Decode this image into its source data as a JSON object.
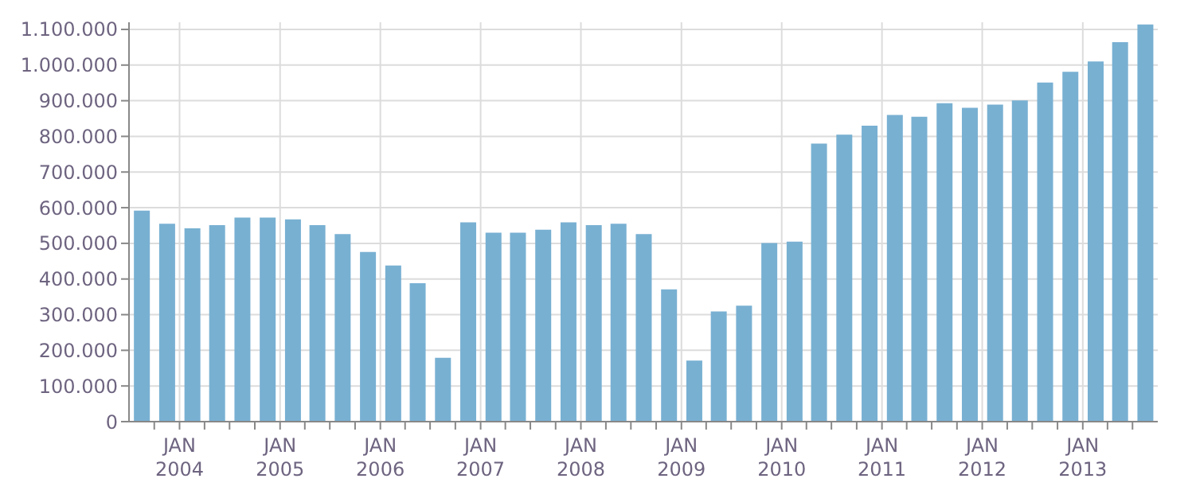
{
  "chart_data": {
    "type": "bar",
    "x": [
      "2003-08-15",
      "2003-11-15",
      "2004-02-15",
      "2004-05-15",
      "2004-08-15",
      "2004-11-15",
      "2005-02-15",
      "2005-05-15",
      "2005-08-15",
      "2005-11-15",
      "2006-02-15",
      "2006-05-15",
      "2006-08-15",
      "2006-11-15",
      "2007-02-15",
      "2007-05-15",
      "2007-08-15",
      "2007-11-15",
      "2008-02-15",
      "2008-05-15",
      "2008-08-15",
      "2008-11-15",
      "2009-02-15",
      "2009-05-15",
      "2009-08-15",
      "2009-11-15",
      "2010-02-15",
      "2010-05-15",
      "2010-08-15",
      "2010-11-15",
      "2011-02-15",
      "2011-05-15",
      "2011-08-15",
      "2011-11-15",
      "2012-02-15",
      "2012-05-15",
      "2012-08-15",
      "2012-11-15",
      "2013-02-15",
      "2013-05-15",
      "2013-08-15"
    ],
    "values": [
      592000,
      555000,
      542000,
      551000,
      572000,
      572000,
      567000,
      551000,
      526000,
      476000,
      438000,
      388000,
      179000,
      559000,
      530000,
      530000,
      538000,
      559000,
      551000,
      555000,
      526000,
      371000,
      171000,
      309000,
      325000,
      501000,
      505000,
      780000,
      805000,
      830000,
      860000,
      855000,
      893000,
      880000,
      889000,
      901000,
      951000,
      981000,
      1010000,
      1064000,
      1114000
    ],
    "color": "#78b0d2",
    "xlim": [
      "2003-07-01",
      "2013-10-01"
    ],
    "xticks": [
      {
        "value": "2003-10-01",
        "label": null
      },
      {
        "value": "2004-01-01",
        "label": "JAN\n2004"
      },
      {
        "value": "2004-04-01",
        "label": null
      },
      {
        "value": "2004-07-01",
        "label": null
      },
      {
        "value": "2004-10-01",
        "label": null
      },
      {
        "value": "2005-01-01",
        "label": "JAN\n2005"
      },
      {
        "value": "2005-04-01",
        "label": null
      },
      {
        "value": "2005-07-01",
        "label": null
      },
      {
        "value": "2005-10-01",
        "label": null
      },
      {
        "value": "2006-01-01",
        "label": "JAN\n2006"
      },
      {
        "value": "2006-04-01",
        "label": null
      },
      {
        "value": "2006-07-01",
        "label": null
      },
      {
        "value": "2006-10-01",
        "label": null
      },
      {
        "value": "2007-01-01",
        "label": "JAN\n2007"
      },
      {
        "value": "2007-04-01",
        "label": null
      },
      {
        "value": "2007-07-01",
        "label": null
      },
      {
        "value": "2007-10-01",
        "label": null
      },
      {
        "value": "2008-01-01",
        "label": "JAN\n2008"
      },
      {
        "value": "2008-04-01",
        "label": null
      },
      {
        "value": "2008-07-01",
        "label": null
      },
      {
        "value": "2008-10-01",
        "label": null
      },
      {
        "value": "2009-01-01",
        "label": "JAN\n2009"
      },
      {
        "value": "2009-04-01",
        "label": null
      },
      {
        "value": "2009-07-01",
        "label": null
      },
      {
        "value": "2009-10-01",
        "label": null
      },
      {
        "value": "2010-01-01",
        "label": "JAN\n2010"
      },
      {
        "value": "2010-04-01",
        "label": null
      },
      {
        "value": "2010-07-01",
        "label": null
      },
      {
        "value": "2010-10-01",
        "label": null
      },
      {
        "value": "2011-01-01",
        "label": "JAN\n2011"
      },
      {
        "value": "2011-04-01",
        "label": null
      },
      {
        "value": "2011-07-01",
        "label": null
      },
      {
        "value": "2011-10-01",
        "label": null
      },
      {
        "value": "2012-01-01",
        "label": "JAN\n2012"
      },
      {
        "value": "2012-04-01",
        "label": null
      },
      {
        "value": "2012-07-01",
        "label": null
      },
      {
        "value": "2012-10-01",
        "label": null
      },
      {
        "value": "2013-01-01",
        "label": "JAN\n2013"
      },
      {
        "value": "2013-04-01",
        "label": null
      },
      {
        "value": "2013-07-01",
        "label": null
      }
    ],
    "ylim": [
      0,
      1120000
    ],
    "yticks": [
      {
        "value": 0,
        "label": "0"
      },
      {
        "value": 100000,
        "label": "100.000"
      },
      {
        "value": 200000,
        "label": "200.000"
      },
      {
        "value": 300000,
        "label": "300.000"
      },
      {
        "value": 400000,
        "label": "400.000"
      },
      {
        "value": 500000,
        "label": "500.000"
      },
      {
        "value": 600000,
        "label": "600.000"
      },
      {
        "value": 700000,
        "label": "700.000"
      },
      {
        "value": 800000,
        "label": "800.000"
      },
      {
        "value": 900000,
        "label": "900.000"
      },
      {
        "value": 1000000,
        "label": "1.000.000"
      },
      {
        "value": 1100000,
        "label": "1.100.000"
      }
    ],
    "grid": true
  }
}
